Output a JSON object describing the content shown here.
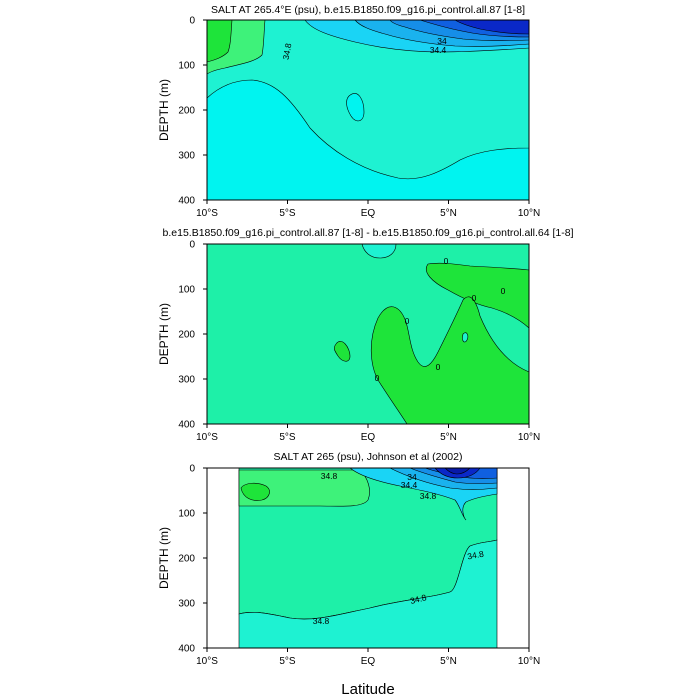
{
  "xlabel": "Latitude",
  "colors": {
    "green": "#1ee43a",
    "light_green": "#3ef27a",
    "mint": "#1ef0a8",
    "aqua": "#1ef2d2",
    "cyan": "#00f4f0",
    "sky": "#1ad4f5",
    "blue1": "#1ab2ee",
    "blue2": "#168ee8",
    "blue3": "#1060e0",
    "navy": "#0a28c8",
    "deep_navy": "#081aa8"
  },
  "chart_data": [
    {
      "type": "contour",
      "title": "SALT AT 265.4°E (psu), b.e15.B1850.f09_g16.pi_control.all.87 [1-8]",
      "ylabel": "DEPTH (m)",
      "xlim": [
        -10,
        10
      ],
      "ylim": [
        400,
        0
      ],
      "x_ticks": [
        "10°S",
        "5°S",
        "EQ",
        "5°N",
        "10°N"
      ],
      "y_ticks": [
        "0",
        "100",
        "200",
        "300",
        "400"
      ],
      "contour_labels": [
        "34.8",
        "34",
        "34.4"
      ]
    },
    {
      "type": "contour",
      "title": "b.e15.B1850.f09_g16.pi_control.all.87 [1-8] - b.e15.B1850.f09_g16.pi_control.all.64 [1-8]",
      "ylabel": "DEPTH (m)",
      "xlim": [
        -10,
        10
      ],
      "ylim": [
        400,
        0
      ],
      "x_ticks": [
        "10°S",
        "5°S",
        "EQ",
        "5°N",
        "10°N"
      ],
      "y_ticks": [
        "0",
        "100",
        "200",
        "300",
        "400"
      ],
      "contour_labels": [
        "0",
        "0",
        "0",
        "0",
        "0",
        "0"
      ]
    },
    {
      "type": "contour",
      "title": "SALT AT 265 (psu), Johnson et al (2002)",
      "ylabel": "DEPTH (m)",
      "xlim": [
        -10,
        10
      ],
      "ylim": [
        400,
        0
      ],
      "data_xrange": [
        -8,
        8
      ],
      "x_ticks": [
        "10°S",
        "5°S",
        "EQ",
        "5°N",
        "10°N"
      ],
      "y_ticks": [
        "0",
        "100",
        "200",
        "300",
        "400"
      ],
      "contour_labels": [
        "34.8",
        "34",
        "34.4",
        "34.8",
        "34.8",
        "34.8",
        "34.8"
      ]
    }
  ]
}
